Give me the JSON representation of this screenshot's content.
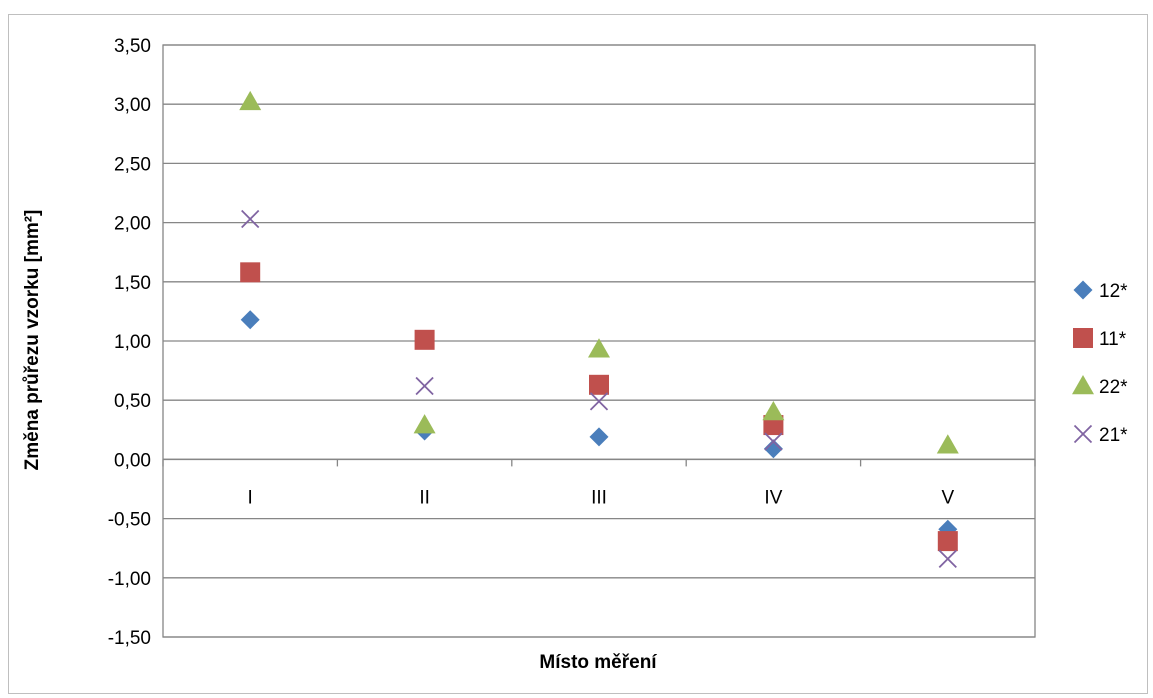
{
  "chart_data": {
    "type": "scatter",
    "title": "",
    "xlabel": "Místo měření",
    "ylabel": "Změna průřezu vzorku [mm²]",
    "categories": [
      "I",
      "II",
      "III",
      "IV",
      "V"
    ],
    "ylim": [
      -1.5,
      3.5
    ],
    "ytick_step": 0.5,
    "yticks": [
      "3,50",
      "3,00",
      "2,50",
      "2,00",
      "1,50",
      "1,00",
      "0,50",
      "0,00",
      "-0,50",
      "-1,00",
      "-1,50"
    ],
    "grid": true,
    "legend_position": "right",
    "series": [
      {
        "name": "12*",
        "marker": "diamond",
        "color": "#4a7ebb",
        "values": [
          1.18,
          0.24,
          0.19,
          0.09,
          -0.59
        ]
      },
      {
        "name": "11*",
        "marker": "square",
        "color": "#c0504d",
        "values": [
          1.58,
          1.01,
          0.63,
          0.29,
          -0.69
        ]
      },
      {
        "name": "22*",
        "marker": "triangle",
        "color": "#9bbb59",
        "values": [
          3.02,
          0.29,
          0.93,
          0.4,
          0.12
        ]
      },
      {
        "name": "21*",
        "marker": "x",
        "color": "#8064a2",
        "values": [
          2.03,
          0.62,
          0.49,
          0.15,
          -0.84
        ]
      }
    ]
  }
}
